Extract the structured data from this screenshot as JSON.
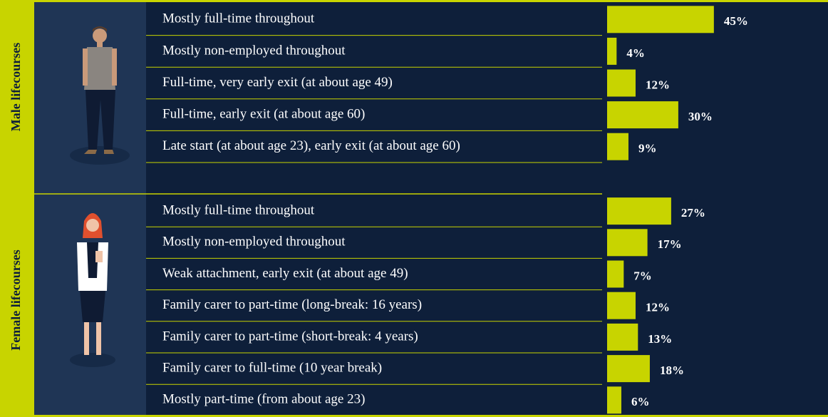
{
  "chart_data": [
    {
      "type": "bar",
      "title": "Male lifecourses",
      "color": "#c8d400",
      "categories": [
        "Mostly full-time throughout",
        "Mostly non-employed throughout",
        "Full-time, very early exit (at about age 49)",
        "Full-time, early exit (at about age 60)",
        "Late start (at about age 23), early exit (at about age 60)"
      ],
      "values": [
        45,
        4,
        12,
        30,
        9
      ],
      "value_labels": [
        "45%",
        "4%",
        "12%",
        "30%",
        "9%"
      ]
    },
    {
      "type": "bar",
      "title": "Female lifecourses",
      "color": "#c8d400",
      "categories": [
        "Mostly full-time throughout",
        "Mostly non-employed throughout",
        "Weak attachment, early exit (at about age 49)",
        "Family carer to part-time (long-break: 16 years)",
        "Family carer to part-time (short-break: 4 years)",
        "Family carer to full-time (10 year break)",
        "Mostly part-time (from about age 23)"
      ],
      "values": [
        27,
        17,
        7,
        12,
        13,
        18,
        6
      ],
      "value_labels": [
        "27%",
        "17%",
        "7%",
        "12%",
        "13%",
        "18%",
        "6%"
      ]
    }
  ]
}
